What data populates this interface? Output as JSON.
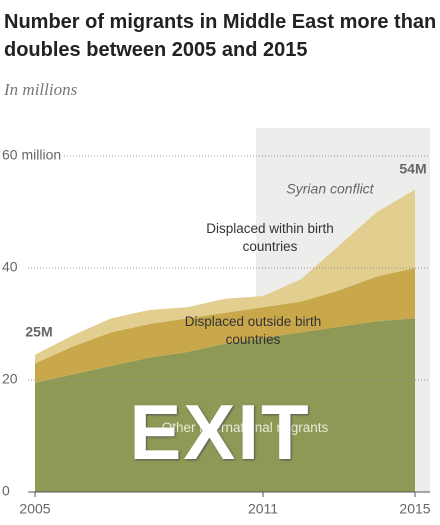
{
  "chart_data": {
    "type": "stacked-area",
    "title": "Number of migrants in Middle East more than doubles between 2005 and 2015",
    "subtitle": "In millions",
    "x": [
      2005,
      2006,
      2007,
      2008,
      2009,
      2010,
      2011,
      2012,
      2013,
      2014,
      2015
    ],
    "series": [
      {
        "name": "Other international migrants",
        "color": "#8e9955",
        "values": [
          19.5,
          21,
          22.5,
          24,
          25,
          26.5,
          27.5,
          28.5,
          29.5,
          30.5,
          31
        ]
      },
      {
        "name": "Displaced outside birth countries",
        "color": "#c9a84c",
        "values": [
          3.5,
          5,
          6,
          6,
          6,
          5.5,
          5.5,
          5.5,
          6.5,
          8,
          9
        ]
      },
      {
        "name": "Displaced within birth countries",
        "color": "#e2cf90",
        "values": [
          1.5,
          2,
          2.5,
          2.5,
          2,
          2.5,
          2,
          4,
          8,
          11.5,
          14
        ]
      }
    ],
    "end_labels": [
      "25M",
      "54M"
    ],
    "shade": {
      "from": 2011,
      "to": 2015,
      "label": "Syrian conflict",
      "color": "#ededeb"
    },
    "xlim": [
      2005,
      2015
    ],
    "xticks": [
      2005,
      2011,
      2015
    ],
    "ylim": [
      0,
      60
    ],
    "yticks": [
      0,
      20,
      40,
      {
        "value": 60,
        "label": "60 million"
      }
    ],
    "grid": true,
    "overlay": "EXIT"
  }
}
